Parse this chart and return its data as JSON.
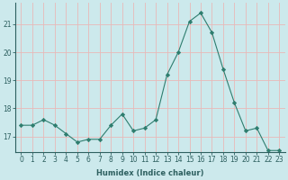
{
  "x": [
    0,
    1,
    2,
    3,
    4,
    5,
    6,
    7,
    8,
    9,
    10,
    11,
    12,
    13,
    14,
    15,
    16,
    17,
    18,
    19,
    20,
    21,
    22,
    23
  ],
  "y": [
    17.4,
    17.4,
    17.6,
    17.4,
    17.1,
    16.8,
    16.9,
    16.9,
    17.4,
    17.8,
    17.2,
    17.3,
    17.6,
    19.2,
    20.0,
    21.1,
    21.4,
    20.7,
    19.4,
    18.2,
    17.2,
    17.3,
    16.5,
    16.5
  ],
  "line_color": "#2e7d6e",
  "marker": "D",
  "marker_size": 2.2,
  "bg_color": "#cce9ec",
  "grid_color_major": "#e8b8b8",
  "grid_color_minor": "#d4e8ea",
  "ylabel_ticks": [
    17,
    18,
    19,
    20,
    21
  ],
  "xlabel": "Humidex (Indice chaleur)",
  "xlim": [
    -0.5,
    23.5
  ],
  "ylim": [
    16.45,
    21.75
  ],
  "tick_fontsize": 5.5,
  "xlabel_fontsize": 6.0
}
